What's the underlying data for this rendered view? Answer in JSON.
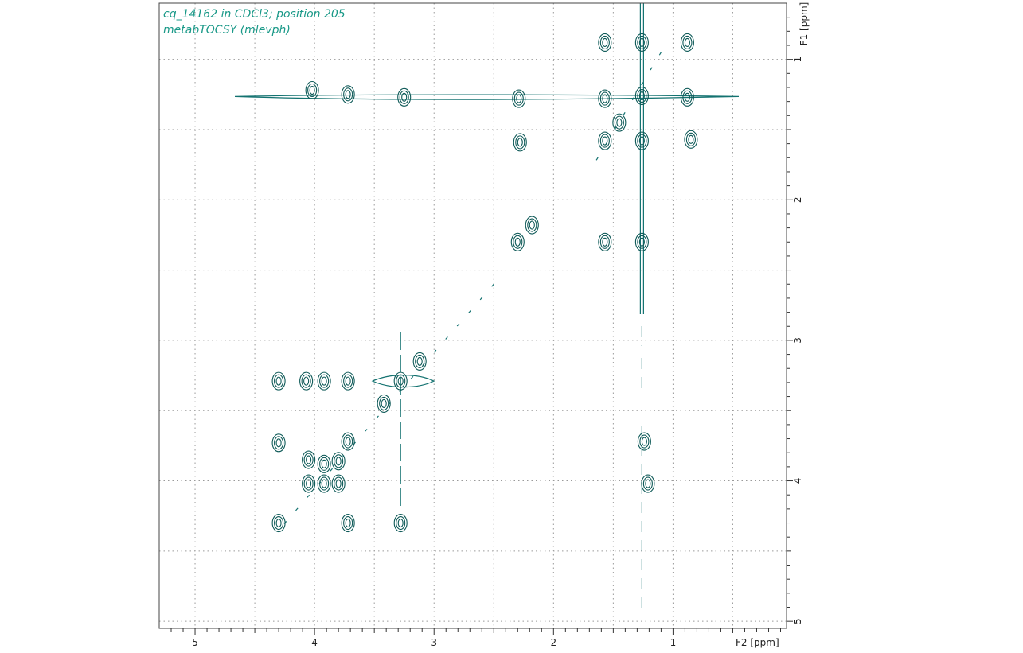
{
  "title": {
    "line1": "cq_14162 in CDCl3; position 205",
    "line2": "metabTOCSY (mlevph)"
  },
  "colors": {
    "contour": "#0f5a58",
    "title": "#1a9988"
  },
  "chart_data": {
    "type": "contour",
    "xlabel": "F2 [ppm]",
    "ylabel": "F1 [ppm]",
    "xlim": [
      5.3,
      0.05
    ],
    "ylim": [
      0.6,
      5.05
    ],
    "x_ticks": [
      5,
      4,
      3,
      2,
      1
    ],
    "y_ticks": [
      1,
      2,
      3,
      4,
      5
    ],
    "grid": true,
    "peaks": [
      {
        "x": 4.02,
        "y": 1.22
      },
      {
        "x": 3.72,
        "y": 1.25
      },
      {
        "x": 3.25,
        "y": 1.27
      },
      {
        "x": 2.29,
        "y": 1.28
      },
      {
        "x": 1.57,
        "y": 1.28
      },
      {
        "x": 1.26,
        "y": 1.26
      },
      {
        "x": 0.88,
        "y": 1.27
      },
      {
        "x": 1.26,
        "y": 0.88
      },
      {
        "x": 1.57,
        "y": 0.88
      },
      {
        "x": 0.88,
        "y": 0.88
      },
      {
        "x": 2.28,
        "y": 1.59
      },
      {
        "x": 1.57,
        "y": 1.58
      },
      {
        "x": 1.26,
        "y": 1.58
      },
      {
        "x": 1.45,
        "y": 1.45
      },
      {
        "x": 0.85,
        "y": 1.57
      },
      {
        "x": 2.3,
        "y": 2.3
      },
      {
        "x": 1.57,
        "y": 2.3
      },
      {
        "x": 1.26,
        "y": 2.3
      },
      {
        "x": 2.18,
        "y": 2.18
      },
      {
        "x": 3.28,
        "y": 3.29
      },
      {
        "x": 4.3,
        "y": 3.29
      },
      {
        "x": 3.72,
        "y": 3.29
      },
      {
        "x": 3.92,
        "y": 3.29
      },
      {
        "x": 4.07,
        "y": 3.29
      },
      {
        "x": 3.12,
        "y": 3.15
      },
      {
        "x": 3.42,
        "y": 3.45
      },
      {
        "x": 4.3,
        "y": 3.73
      },
      {
        "x": 3.72,
        "y": 3.72
      },
      {
        "x": 1.24,
        "y": 3.72
      },
      {
        "x": 4.05,
        "y": 3.85
      },
      {
        "x": 3.92,
        "y": 3.88
      },
      {
        "x": 3.8,
        "y": 3.86
      },
      {
        "x": 4.05,
        "y": 4.02
      },
      {
        "x": 3.92,
        "y": 4.02
      },
      {
        "x": 3.8,
        "y": 4.02
      },
      {
        "x": 1.21,
        "y": 4.02
      },
      {
        "x": 4.3,
        "y": 4.3
      },
      {
        "x": 3.72,
        "y": 4.3
      },
      {
        "x": 3.28,
        "y": 4.3
      }
    ]
  }
}
